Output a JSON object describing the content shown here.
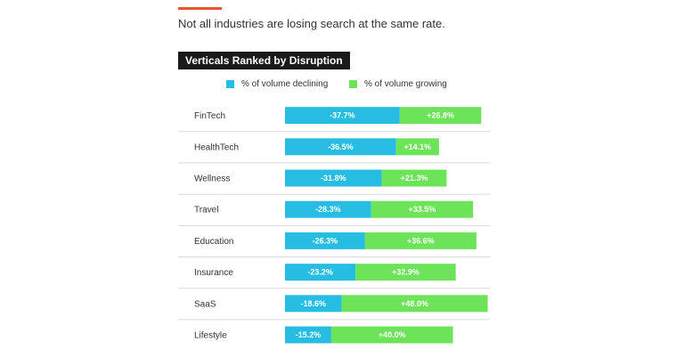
{
  "header": {
    "subtitle": "Not all industries are losing search at the same rate."
  },
  "colors": {
    "accent": "#e8562f",
    "declining": "#27bde3",
    "growing": "#6de35a",
    "divider": "#d9d9d9",
    "title_bg": "#1a1a1a"
  },
  "chart_data": {
    "type": "bar",
    "stacked": true,
    "orientation": "horizontal",
    "title": "Verticals Ranked by Disruption",
    "categories": [
      "FinTech",
      "HealthTech",
      "Wellness",
      "Travel",
      "Education",
      "Insurance",
      "SaaS",
      "Lifestyle"
    ],
    "series": [
      {
        "name": "% of volume declining",
        "values": [
          37.7,
          36.5,
          31.8,
          28.3,
          26.3,
          23.2,
          18.6,
          15.2
        ],
        "labels": [
          "-37.7%",
          "-36.5%",
          "-31.8%",
          "-28.3%",
          "-26.3%",
          "-23.2%",
          "-18.6%",
          "-15.2%"
        ]
      },
      {
        "name": "% of volume growing",
        "values": [
          26.8,
          14.1,
          21.3,
          33.5,
          36.6,
          32.9,
          48.0,
          40.0
        ],
        "labels": [
          "+26.8%",
          "+14.1%",
          "+21.3%",
          "+33.5%",
          "+36.6%",
          "+32.9%",
          "+48.0%",
          "+40.0%"
        ]
      }
    ],
    "legend_position": "top",
    "grid": false
  }
}
